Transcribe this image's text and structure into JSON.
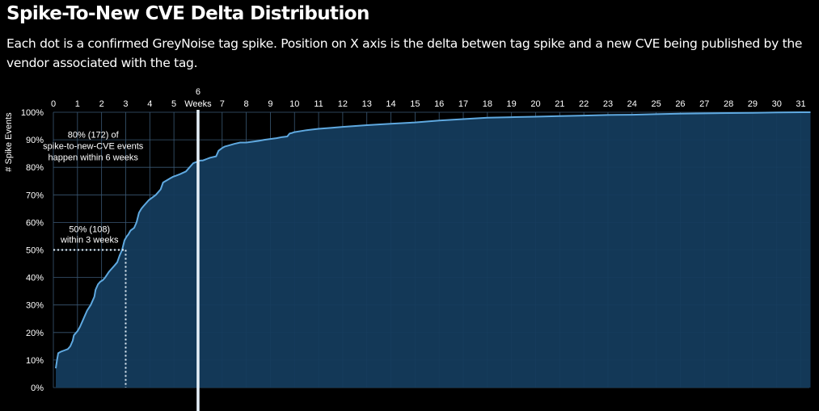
{
  "title": "Spike-To-New CVE Delta Distribution",
  "subtitle": "Each dot is a confirmed GreyNoise tag spike. Position on X axis is the delta betwen tag spike and a new CVE being published by the vendor associated with the tag.",
  "colors": {
    "background": "#000000",
    "area_fill": "#143b5c",
    "line": "#5fa9e0",
    "grid": "#3a5874",
    "marker": "#e6f0f8"
  },
  "chart_data": {
    "type": "area",
    "ylabel": "# Spike Events",
    "x_tick_labels": [
      "0",
      "1",
      "2",
      "3",
      "4",
      "5",
      "Weeks",
      "7",
      "8",
      "9",
      "10",
      "11",
      "12",
      "13",
      "14",
      "15",
      "16",
      "17",
      "18",
      "19",
      "20",
      "21",
      "22",
      "23",
      "24",
      "25",
      "26",
      "27",
      "28",
      "29",
      "30",
      "31"
    ],
    "x_tick_values": [
      0,
      1,
      2,
      3,
      4,
      5,
      6,
      7,
      8,
      9,
      10,
      11,
      12,
      13,
      14,
      15,
      16,
      17,
      18,
      19,
      20,
      21,
      22,
      23,
      24,
      25,
      26,
      27,
      28,
      29,
      30,
      31
    ],
    "six_label": "6",
    "y_tick_labels": [
      "100%",
      "90%",
      "80%",
      "70%",
      "60%",
      "50%",
      "40%",
      "30%",
      "20%",
      "10%",
      "0%"
    ],
    "y_tick_values": [
      100,
      90,
      80,
      70,
      60,
      50,
      40,
      30,
      20,
      10,
      0
    ],
    "xlim": [
      -0.1,
      31.4
    ],
    "ylim": [
      0,
      100
    ],
    "grid": true,
    "legend": "none",
    "series": [
      {
        "x": [
          0.1,
          0.15,
          0.2,
          0.3,
          0.45,
          0.6,
          0.7,
          0.8,
          0.85,
          1.0,
          1.1,
          1.2,
          1.3,
          1.4,
          1.55,
          1.7,
          1.75,
          1.85,
          1.95,
          2.05,
          2.15,
          2.3,
          2.4,
          2.55,
          2.65,
          2.75,
          2.85,
          2.95,
          3.05,
          3.1,
          3.2,
          3.35,
          3.45,
          3.55,
          3.65,
          3.75,
          3.85,
          3.95,
          4.1,
          4.25,
          4.45,
          4.55,
          4.75,
          4.85,
          4.95,
          5.1,
          5.25,
          5.5,
          5.65,
          5.8,
          5.95,
          6.1,
          6.2,
          6.35,
          6.5,
          6.75,
          6.85,
          7.0,
          7.1,
          7.3,
          7.5,
          7.75,
          8.0,
          8.25,
          8.5,
          8.75,
          9.0,
          9.25,
          9.5,
          9.7,
          9.8,
          9.9,
          10.0,
          10.5,
          11.0,
          11.5,
          12.0,
          13.0,
          14.0,
          15.0,
          16.0,
          17.0,
          18.0,
          19.0,
          20.0,
          21.0,
          22.0,
          23.0,
          24.0,
          25.0,
          26.0,
          27.0,
          28.0,
          29.0,
          30.0,
          31.0,
          31.4
        ],
        "y": [
          7,
          10,
          12.5,
          13,
          13.5,
          14,
          15,
          17,
          19,
          20.5,
          22,
          24,
          26,
          28,
          30,
          33,
          35.5,
          37.5,
          38.5,
          39,
          40,
          42,
          43,
          44.5,
          45.5,
          48,
          50,
          53.5,
          55,
          55.5,
          57,
          58,
          60,
          63.5,
          65,
          66,
          67,
          68,
          69,
          70,
          72,
          74.5,
          75.5,
          76,
          76.5,
          77,
          77.5,
          78.5,
          80,
          81.5,
          82,
          82.5,
          82.5,
          83,
          83.5,
          84,
          86,
          87,
          87.5,
          88,
          88.5,
          89,
          89,
          89.3,
          89.6,
          90,
          90.3,
          90.6,
          91,
          91.2,
          92.3,
          92.5,
          92.8,
          93.5,
          94,
          94.3,
          94.7,
          95.3,
          95.8,
          96.3,
          97,
          97.5,
          98,
          98.2,
          98.4,
          98.6,
          98.8,
          99,
          99.1,
          99.3,
          99.5,
          99.6,
          99.7,
          99.8,
          99.9,
          100,
          100
        ]
      }
    ],
    "annotations": [
      {
        "name": "annotation-80",
        "lines": [
          "80% (172) of",
          "spike-to-new-CVE events",
          "happen within 6 weeks"
        ],
        "x": 6
      },
      {
        "name": "annotation-50",
        "lines": [
          "50% (108)",
          "within 3 weeks"
        ],
        "x": 3,
        "y": 50
      }
    ]
  }
}
